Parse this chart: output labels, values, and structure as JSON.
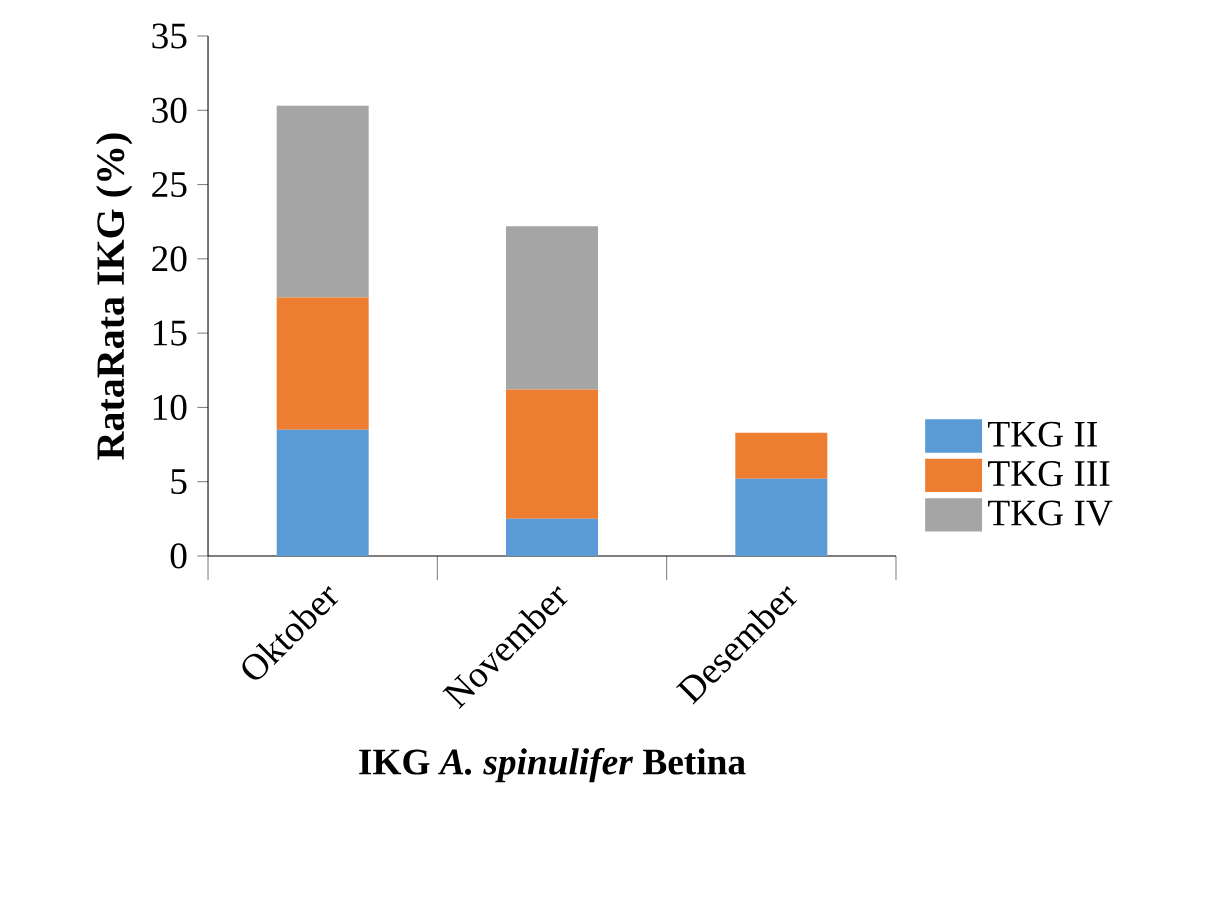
{
  "chart_data": {
    "type": "bar",
    "stacked": true,
    "xlabel": "IKG *A. spinulifer* Betina",
    "ylabel": "RataRata IKG (%)",
    "categories": [
      "Oktober",
      "November",
      "Desember"
    ],
    "series": [
      {
        "name": "TKG II",
        "color": "#5b9bd5",
        "values": [
          8.5,
          2.5,
          5.2
        ]
      },
      {
        "name": "TKG III",
        "color": "#ed7d31",
        "values": [
          8.9,
          8.7,
          3.1
        ]
      },
      {
        "name": "TKG IV",
        "color": "#a5a5a5",
        "values": [
          12.9,
          11.0,
          null
        ]
      }
    ],
    "ylim": [
      0,
      35
    ],
    "yticks": [
      0,
      5,
      10,
      15,
      20,
      25,
      30,
      35
    ],
    "legend": "right"
  }
}
